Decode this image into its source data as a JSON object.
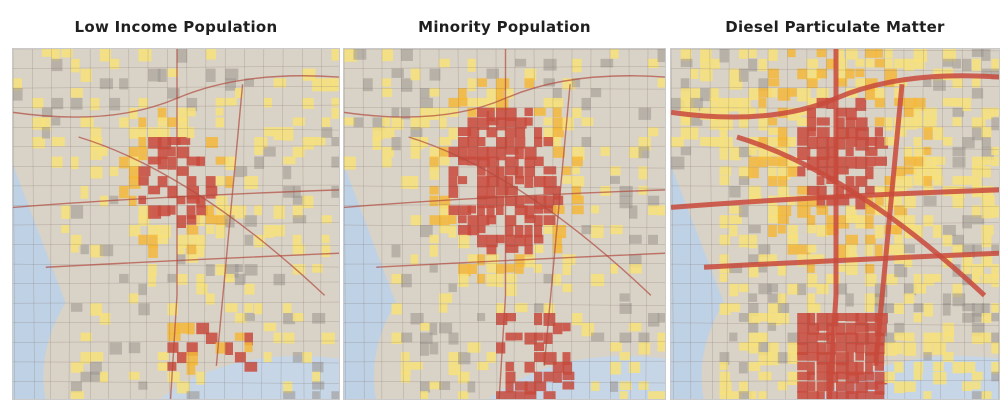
{
  "panels": [
    {
      "title": "Low Income Population",
      "theme": "low-income"
    },
    {
      "title": "Minority Population",
      "theme": "minority"
    },
    {
      "title": "Diesel Particulate Matter",
      "theme": "diesel"
    }
  ],
  "colors": {
    "background": "#ffffff",
    "land": "#d9d2c6",
    "water": "#c6d6e6",
    "ocean": "#bfd1e4",
    "tract_lines": "#7c6f69",
    "roads": "#b04a3e",
    "low": "#f7e27a",
    "medium": "#f4b93a",
    "high": "#c84a3c",
    "gray_tracts": "#9a9590"
  }
}
